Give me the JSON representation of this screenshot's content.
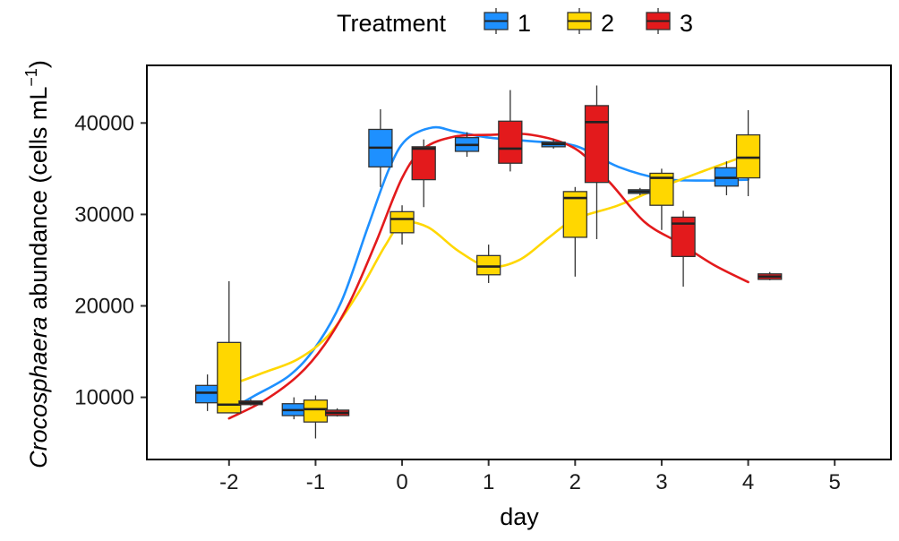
{
  "chart_data": {
    "type": "box",
    "xlabel": "day",
    "ylabel_italic": "Crocosphaera",
    "ylabel_rest": " abundance (cells mL",
    "ylabel_unit_sup": "−1",
    "ylabel_close": ")",
    "xlim": [
      -2.95,
      5.65
    ],
    "ylim": [
      3200,
      46300
    ],
    "x_ticks": [
      -2,
      -1,
      0,
      1,
      2,
      3,
      4,
      5
    ],
    "x_tick_labels": [
      "-2",
      "-1",
      "0",
      "1",
      "2",
      "3",
      "4",
      "5"
    ],
    "y_ticks": [
      10000,
      20000,
      30000,
      40000
    ],
    "y_tick_labels": [
      "10000",
      "20000",
      "30000",
      "40000"
    ],
    "legend": {
      "title": "Treatment",
      "position": "top",
      "entries": [
        "1",
        "2",
        "3"
      ]
    },
    "series": [
      {
        "name": "1",
        "color": "#1e90ff",
        "boxes": [
          {
            "x": -2.25,
            "min": 8500,
            "q1": 9400,
            "median": 10500,
            "q3": 11300,
            "max": 12500
          },
          {
            "x": -1.25,
            "min": 7600,
            "q1": 8000,
            "median": 8600,
            "q3": 9300,
            "max": 10000
          },
          {
            "x": -0.25,
            "min": 33000,
            "q1": 35200,
            "median": 37300,
            "q3": 39300,
            "max": 41500
          },
          {
            "x": 0.75,
            "min": 36300,
            "q1": 36900,
            "median": 37600,
            "q3": 38400,
            "max": 39000
          },
          {
            "x": 1.75,
            "min": 37200,
            "q1": 37400,
            "median": 37700,
            "q3": 37900,
            "max": 38200
          },
          {
            "x": 2.75,
            "min": 32100,
            "q1": 32300,
            "median": 32500,
            "q3": 32700,
            "max": 32900
          },
          {
            "x": 3.75,
            "min": 32100,
            "q1": 33100,
            "median": 34000,
            "q3": 35100,
            "max": 35800
          }
        ],
        "smooth": [
          {
            "x": -2,
            "y": 8600
          },
          {
            "x": -1.7,
            "y": 10200
          },
          {
            "x": -1.3,
            "y": 12400
          },
          {
            "x": -1,
            "y": 15500
          },
          {
            "x": -0.7,
            "y": 20500
          },
          {
            "x": -0.4,
            "y": 28500
          },
          {
            "x": -0.15,
            "y": 35000
          },
          {
            "x": 0.05,
            "y": 38200
          },
          {
            "x": 0.35,
            "y": 39500
          },
          {
            "x": 0.6,
            "y": 39100
          },
          {
            "x": 1,
            "y": 38400
          },
          {
            "x": 1.5,
            "y": 38000
          },
          {
            "x": 2,
            "y": 37500
          },
          {
            "x": 2.5,
            "y": 35200
          },
          {
            "x": 3,
            "y": 33900
          },
          {
            "x": 3.5,
            "y": 33700
          },
          {
            "x": 4,
            "y": 33800
          }
        ]
      },
      {
        "name": "2",
        "color": "#ffd700",
        "boxes": [
          {
            "x": -2,
            "min": 8300,
            "q1": 8300,
            "median": 9200,
            "q3": 16000,
            "max": 22700
          },
          {
            "x": -1,
            "min": 5500,
            "q1": 7300,
            "median": 8700,
            "q3": 9700,
            "max": 10200
          },
          {
            "x": 0,
            "min": 26700,
            "q1": 28000,
            "median": 29500,
            "q3": 30300,
            "max": 31000
          },
          {
            "x": 1,
            "min": 22500,
            "q1": 23400,
            "median": 24300,
            "q3": 25500,
            "max": 26700
          },
          {
            "x": 2,
            "min": 23200,
            "q1": 27500,
            "median": 31800,
            "q3": 32500,
            "max": 33000
          },
          {
            "x": 3,
            "min": 28300,
            "q1": 31000,
            "median": 34000,
            "q3": 34500,
            "max": 35000
          },
          {
            "x": 4,
            "min": 32000,
            "q1": 34000,
            "median": 36200,
            "q3": 38700,
            "max": 41400
          }
        ],
        "smooth": [
          {
            "x": -2,
            "y": 11300
          },
          {
            "x": -1.6,
            "y": 12700
          },
          {
            "x": -1.2,
            "y": 14200
          },
          {
            "x": -0.85,
            "y": 16800
          },
          {
            "x": -0.5,
            "y": 21500
          },
          {
            "x": -0.2,
            "y": 26500
          },
          {
            "x": 0,
            "y": 29000
          },
          {
            "x": 0.3,
            "y": 28600
          },
          {
            "x": 0.65,
            "y": 26000
          },
          {
            "x": 1,
            "y": 24300
          },
          {
            "x": 1.35,
            "y": 25000
          },
          {
            "x": 1.7,
            "y": 27500
          },
          {
            "x": 2,
            "y": 29500
          },
          {
            "x": 2.5,
            "y": 31000
          },
          {
            "x": 3,
            "y": 33000
          },
          {
            "x": 3.5,
            "y": 34800
          },
          {
            "x": 4,
            "y": 36500
          }
        ]
      },
      {
        "name": "3",
        "color": "#e31a1c",
        "boxes": [
          {
            "x": -1.75,
            "min": 9100,
            "q1": 9200,
            "median": 9400,
            "q3": 9600,
            "max": 9800
          },
          {
            "x": -0.75,
            "min": 7900,
            "q1": 8000,
            "median": 8300,
            "q3": 8600,
            "max": 8800
          },
          {
            "x": 0.25,
            "min": 30800,
            "q1": 33800,
            "median": 37200,
            "q3": 37400,
            "max": 38200
          },
          {
            "x": 1.25,
            "min": 34700,
            "q1": 35600,
            "median": 37200,
            "q3": 40200,
            "max": 43600
          },
          {
            "x": 2.25,
            "min": 27300,
            "q1": 33500,
            "median": 40100,
            "q3": 41900,
            "max": 44100
          },
          {
            "x": 3.25,
            "min": 22100,
            "q1": 25400,
            "median": 29000,
            "q3": 29700,
            "max": 30400
          },
          {
            "x": 4.25,
            "min": 22800,
            "q1": 22900,
            "median": 23200,
            "q3": 23500,
            "max": 23700
          }
        ],
        "smooth": [
          {
            "x": -2,
            "y": 7700
          },
          {
            "x": -1.6,
            "y": 9600
          },
          {
            "x": -1.2,
            "y": 12400
          },
          {
            "x": -0.9,
            "y": 15700
          },
          {
            "x": -0.6,
            "y": 20500
          },
          {
            "x": -0.3,
            "y": 27000
          },
          {
            "x": 0,
            "y": 34000
          },
          {
            "x": 0.25,
            "y": 37200
          },
          {
            "x": 0.6,
            "y": 38500
          },
          {
            "x": 1,
            "y": 38700
          },
          {
            "x": 1.5,
            "y": 38700
          },
          {
            "x": 2,
            "y": 37200
          },
          {
            "x": 2.4,
            "y": 33500
          },
          {
            "x": 2.8,
            "y": 29200
          },
          {
            "x": 3.2,
            "y": 26900
          },
          {
            "x": 3.6,
            "y": 24500
          },
          {
            "x": 4,
            "y": 22600
          }
        ]
      }
    ]
  }
}
